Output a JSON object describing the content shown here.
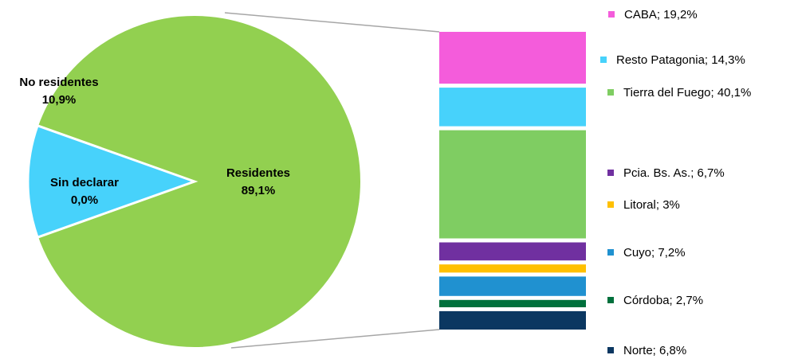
{
  "chart_data": {
    "type": "bar-of-pie",
    "pie": {
      "slices": [
        {
          "name": "Residentes",
          "value": 89.1,
          "label_name": "Residentes",
          "label_value": "89,1%",
          "color": "#92d050"
        },
        {
          "name": "Sin declarar",
          "value": 0.0,
          "label_name": "Sin declarar",
          "label_value": "0,0%",
          "color": "#47d2fb"
        },
        {
          "name": "No residentes",
          "value": 10.9,
          "label_name": "No residentes",
          "label_value": "10,9%",
          "color": "#92d050"
        }
      ]
    },
    "bar": {
      "segments": [
        {
          "name": "CABA",
          "value": 19.2,
          "legend": "CABA; 19,2%",
          "color": "#f45cdb"
        },
        {
          "name": "Resto Patagonia",
          "value": 14.3,
          "legend": "Resto Patagonia; 14,3%",
          "color": "#47d2fb"
        },
        {
          "name": "Tierra del Fuego",
          "value": 40.1,
          "legend": "Tierra del Fuego; 40,1%",
          "color": "#7fcd62"
        },
        {
          "name": "Pcia. Bs. As.",
          "value": 6.7,
          "legend": "Pcia. Bs. As.; 6,7%",
          "color": "#7030a0"
        },
        {
          "name": "Litoral",
          "value": 3,
          "legend": "Litoral; 3%",
          "color": "#ffc000"
        },
        {
          "name": "Cuyo",
          "value": 7.2,
          "legend": "Cuyo; 7,2%",
          "color": "#2091d0"
        },
        {
          "name": "Córdoba",
          "value": 2.7,
          "legend": "Córdoba; 2,7%",
          "color": "#00703c"
        },
        {
          "name": "Norte",
          "value": 6.8,
          "legend": "Norte; 6,8%",
          "color": "#0b3761"
        }
      ]
    },
    "connector_color": "#a6a6a6"
  }
}
